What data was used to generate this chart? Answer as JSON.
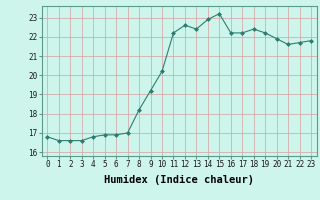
{
  "x": [
    0,
    1,
    2,
    3,
    4,
    5,
    6,
    7,
    8,
    9,
    10,
    11,
    12,
    13,
    14,
    15,
    16,
    17,
    18,
    19,
    20,
    21,
    22,
    23
  ],
  "y": [
    16.8,
    16.6,
    16.6,
    16.6,
    16.8,
    16.9,
    16.9,
    17.0,
    18.2,
    19.2,
    20.2,
    22.2,
    22.6,
    22.4,
    22.9,
    23.2,
    22.2,
    22.2,
    22.4,
    22.2,
    21.9,
    21.6,
    21.7,
    21.8
  ],
  "title": "",
  "xlabel": "Humidex (Indice chaleur)",
  "ylabel": "",
  "xlim": [
    -0.5,
    23.5
  ],
  "ylim": [
    15.8,
    23.6
  ],
  "yticks": [
    16,
    17,
    18,
    19,
    20,
    21,
    22,
    23
  ],
  "xticks": [
    0,
    1,
    2,
    3,
    4,
    5,
    6,
    7,
    8,
    9,
    10,
    11,
    12,
    13,
    14,
    15,
    16,
    17,
    18,
    19,
    20,
    21,
    22,
    23
  ],
  "line_color": "#2d7d6e",
  "marker_color": "#2d7d6e",
  "bg_color": "#cef5ec",
  "grid_color_major": "#f0c8c8",
  "grid_color_minor": "#e8d8d8",
  "tick_label_fontsize": 5.5,
  "xlabel_fontsize": 7.5
}
